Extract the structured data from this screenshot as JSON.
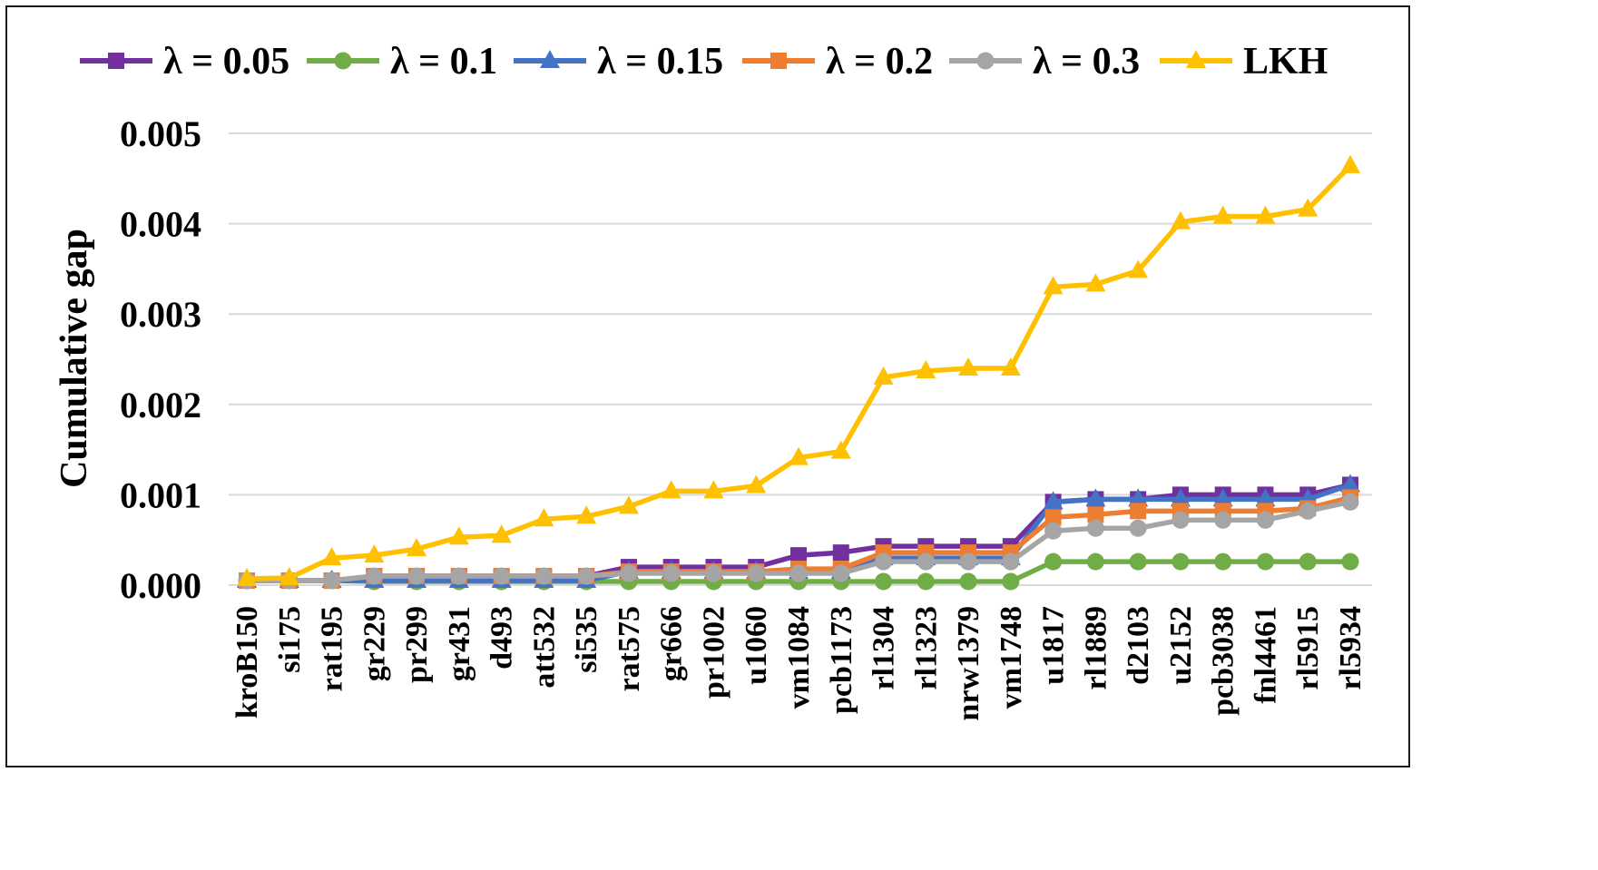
{
  "chart_data": {
    "type": "line",
    "title": "",
    "xlabel": "",
    "ylabel": "Cumulative gap",
    "ylim": [
      0,
      0.005
    ],
    "yticks": [
      "0.000",
      "0.001",
      "0.002",
      "0.003",
      "0.004",
      "0.005"
    ],
    "grid": true,
    "legend_position": "top",
    "categories": [
      "kroB150",
      "si175",
      "rat195",
      "gr229",
      "pr299",
      "gr431",
      "d493",
      "att532",
      "si535",
      "rat575",
      "gr666",
      "pr1002",
      "u1060",
      "vm1084",
      "pcb1173",
      "rl1304",
      "rl1323",
      "nrw1379",
      "vm1748",
      "u1817",
      "rl1889",
      "d2103",
      "u2152",
      "pcb3038",
      "fnl4461",
      "rl5915",
      "rl5934"
    ],
    "series": [
      {
        "name": "λ = 0.05",
        "color": "#7030A0",
        "marker": "square",
        "values": [
          5e-05,
          5e-05,
          5e-05,
          0.0001,
          0.0001,
          0.0001,
          0.0001,
          0.0001,
          0.0001,
          0.0002,
          0.0002,
          0.0002,
          0.0002,
          0.00033,
          0.00036,
          0.00043,
          0.00043,
          0.00043,
          0.00043,
          0.00092,
          0.00095,
          0.00095,
          0.001,
          0.001,
          0.001,
          0.001,
          0.00111
        ]
      },
      {
        "name": "λ = 0.1",
        "color": "#70AD47",
        "marker": "circle",
        "values": [
          5e-05,
          5e-05,
          5e-05,
          4e-05,
          4e-05,
          4e-05,
          4e-05,
          4e-05,
          4e-05,
          4e-05,
          4e-05,
          4e-05,
          4e-05,
          4e-05,
          4e-05,
          4e-05,
          4e-05,
          4e-05,
          4e-05,
          0.00026,
          0.00026,
          0.00026,
          0.00026,
          0.00026,
          0.00026,
          0.00026,
          0.00026
        ]
      },
      {
        "name": "λ = 0.15",
        "color": "#4472C4",
        "marker": "triangle",
        "values": [
          5e-05,
          5e-05,
          5e-05,
          5e-05,
          5e-05,
          5e-05,
          5e-05,
          5e-05,
          5e-05,
          0.00015,
          0.00015,
          0.00015,
          0.00015,
          0.00015,
          0.00015,
          0.0003,
          0.0003,
          0.0003,
          0.0003,
          0.00092,
          0.00095,
          0.00095,
          0.00095,
          0.00095,
          0.00095,
          0.00095,
          0.00111
        ]
      },
      {
        "name": "λ = 0.2",
        "color": "#ED7D31",
        "marker": "square",
        "values": [
          5e-05,
          5e-05,
          5e-05,
          0.0001,
          0.0001,
          0.0001,
          0.0001,
          0.0001,
          0.0001,
          0.00015,
          0.00015,
          0.00015,
          0.00015,
          0.00018,
          0.00018,
          0.00036,
          0.00036,
          0.00036,
          0.00036,
          0.00075,
          0.00078,
          0.00082,
          0.00082,
          0.00082,
          0.00082,
          0.00085,
          0.00097
        ]
      },
      {
        "name": "λ = 0.3",
        "color": "#A5A5A5",
        "marker": "circle",
        "values": [
          5e-05,
          5e-05,
          5e-05,
          0.0001,
          0.0001,
          0.0001,
          0.0001,
          0.0001,
          0.0001,
          0.00013,
          0.00013,
          0.00013,
          0.00013,
          0.00013,
          0.00013,
          0.00026,
          0.00026,
          0.00026,
          0.00026,
          0.0006,
          0.00063,
          0.00063,
          0.00072,
          0.00072,
          0.00072,
          0.00082,
          0.00092
        ]
      },
      {
        "name": "LKH",
        "color": "#FFC000",
        "marker": "triangle",
        "values": [
          7e-05,
          8e-05,
          0.0003,
          0.00033,
          0.0004,
          0.00053,
          0.00055,
          0.00073,
          0.00076,
          0.00087,
          0.00104,
          0.00104,
          0.0011,
          0.00141,
          0.00148,
          0.0023,
          0.00237,
          0.0024,
          0.0024,
          0.0033,
          0.00333,
          0.00348,
          0.00402,
          0.00408,
          0.00408,
          0.00416,
          0.00464
        ]
      }
    ]
  }
}
